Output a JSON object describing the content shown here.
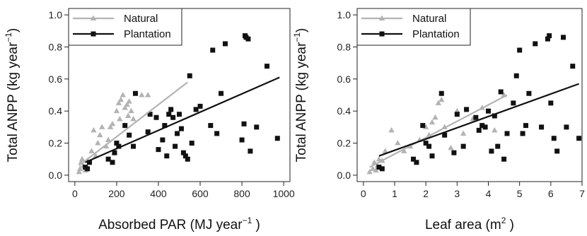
{
  "chart_data": [
    {
      "type": "scatter",
      "xlabel": "Absorbed PAR (MJ  year",
      "xlabel_sup": "−1",
      "xlabel_end": ")",
      "ylabel": "Total ANPP (kg year",
      "ylabel_sup": "−1",
      "ylabel_end": ")",
      "xlim": [
        -30,
        1030
      ],
      "ylim": [
        -0.04,
        1.04
      ],
      "xticks": [
        0,
        200,
        400,
        600,
        800,
        1000
      ],
      "xtick_labels": [
        "0",
        "200",
        "400",
        "600",
        "800",
        "1000"
      ],
      "yticks": [
        0.0,
        0.2,
        0.4,
        0.6,
        0.8,
        1.0
      ],
      "ytick_labels": [
        "0.0",
        "0.2",
        "0.4",
        "0.6",
        "0.8",
        "1.0"
      ],
      "legend_placement": "top-left",
      "series": [
        {
          "name": "Natural",
          "color": "#b3b3b3",
          "marker": "triangle",
          "points": [
            [
              20,
              0.02
            ],
            [
              25,
              0.04
            ],
            [
              30,
              0.08
            ],
            [
              40,
              0.06
            ],
            [
              35,
              0.1
            ],
            [
              50,
              0.03
            ],
            [
              60,
              0.09
            ],
            [
              80,
              0.15
            ],
            [
              90,
              0.28
            ],
            [
              100,
              0.12
            ],
            [
              110,
              0.2
            ],
            [
              120,
              0.25
            ],
            [
              130,
              0.3
            ],
            [
              150,
              0.18
            ],
            [
              160,
              0.22
            ],
            [
              170,
              0.3
            ],
            [
              180,
              0.32
            ],
            [
              190,
              0.14
            ],
            [
              200,
              0.4
            ],
            [
              210,
              0.45
            ],
            [
              215,
              0.35
            ],
            [
              220,
              0.47
            ],
            [
              230,
              0.5
            ],
            [
              240,
              0.42
            ],
            [
              250,
              0.44
            ],
            [
              255,
              0.37
            ],
            [
              260,
              0.46
            ],
            [
              270,
              0.4
            ],
            [
              280,
              0.35
            ],
            [
              320,
              0.5
            ],
            [
              350,
              0.5
            ]
          ],
          "fit": [
            [
              20,
              0.06
            ],
            [
              540,
              0.58
            ]
          ]
        },
        {
          "name": "Plantation",
          "color": "#111111",
          "marker": "square",
          "points": [
            [
              50,
              0.05
            ],
            [
              60,
              0.04
            ],
            [
              70,
              0.08
            ],
            [
              160,
              0.1
            ],
            [
              180,
              0.08
            ],
            [
              190,
              0.14
            ],
            [
              200,
              0.2
            ],
            [
              210,
              0.18
            ],
            [
              240,
              0.31
            ],
            [
              260,
              0.25
            ],
            [
              280,
              0.18
            ],
            [
              290,
              0.51
            ],
            [
              350,
              0.27
            ],
            [
              360,
              0.38
            ],
            [
              390,
              0.36
            ],
            [
              400,
              0.16
            ],
            [
              420,
              0.22
            ],
            [
              430,
              0.31
            ],
            [
              440,
              0.12
            ],
            [
              450,
              0.38
            ],
            [
              460,
              0.41
            ],
            [
              470,
              0.36
            ],
            [
              480,
              0.18
            ],
            [
              490,
              0.26
            ],
            [
              500,
              0.38
            ],
            [
              510,
              0.29
            ],
            [
              520,
              0.14
            ],
            [
              530,
              0.12
            ],
            [
              540,
              0.1
            ],
            [
              550,
              0.62
            ],
            [
              560,
              0.2
            ],
            [
              580,
              0.41
            ],
            [
              600,
              0.43
            ],
            [
              650,
              0.31
            ],
            [
              660,
              0.78
            ],
            [
              680,
              0.26
            ],
            [
              700,
              0.51
            ],
            [
              720,
              0.82
            ],
            [
              800,
              0.22
            ],
            [
              810,
              0.32
            ],
            [
              815,
              0.87
            ],
            [
              820,
              0.86
            ],
            [
              830,
              0.85
            ],
            [
              840,
              0.15
            ],
            [
              870,
              0.3
            ],
            [
              920,
              0.68
            ],
            [
              970,
              0.23
            ]
          ],
          "fit": [
            [
              50,
              0.08
            ],
            [
              980,
              0.61
            ]
          ]
        }
      ]
    },
    {
      "type": "scatter",
      "xlabel": "Leaf area (m",
      "xlabel_sup": "2",
      "xlabel_end": ")",
      "ylabel": "Total ANPP (kg year",
      "ylabel_sup": "−1",
      "ylabel_end": ")",
      "xlim": [
        -0.2,
        7.0
      ],
      "ylim": [
        -0.04,
        1.04
      ],
      "xticks": [
        0,
        1,
        2,
        3,
        4,
        5,
        6,
        7
      ],
      "xtick_labels": [
        "0",
        "1",
        "2",
        "3",
        "4",
        "5",
        "6",
        "7"
      ],
      "yticks": [
        0.0,
        0.2,
        0.4,
        0.6,
        0.8,
        1.0
      ],
      "ytick_labels": [
        "0.0",
        "0.2",
        "0.4",
        "0.6",
        "0.8",
        "1.0"
      ],
      "legend_placement": "top-left",
      "series": [
        {
          "name": "Natural",
          "color": "#b3b3b3",
          "marker": "triangle",
          "points": [
            [
              0.2,
              0.02
            ],
            [
              0.3,
              0.04
            ],
            [
              0.35,
              0.08
            ],
            [
              0.4,
              0.03
            ],
            [
              0.45,
              0.06
            ],
            [
              0.5,
              0.1
            ],
            [
              0.55,
              0.05
            ],
            [
              0.6,
              0.09
            ],
            [
              0.7,
              0.15
            ],
            [
              0.9,
              0.28
            ],
            [
              1.1,
              0.2
            ],
            [
              1.3,
              0.15
            ],
            [
              1.5,
              0.18
            ],
            [
              1.8,
              0.22
            ],
            [
              2.0,
              0.3
            ],
            [
              2.1,
              0.25
            ],
            [
              2.2,
              0.33
            ],
            [
              2.3,
              0.36
            ],
            [
              2.4,
              0.45
            ],
            [
              2.5,
              0.47
            ],
            [
              2.6,
              0.3
            ],
            [
              2.8,
              0.17
            ],
            [
              3.0,
              0.4
            ],
            [
              3.2,
              0.26
            ],
            [
              3.5,
              0.35
            ],
            [
              3.8,
              0.42
            ],
            [
              4.2,
              0.28
            ],
            [
              4.5,
              0.5
            ]
          ],
          "fit": [
            [
              0.2,
              0.05
            ],
            [
              4.6,
              0.5
            ]
          ]
        },
        {
          "name": "Plantation",
          "color": "#111111",
          "marker": "square",
          "points": [
            [
              0.5,
              0.05
            ],
            [
              0.6,
              0.04
            ],
            [
              1.6,
              0.1
            ],
            [
              1.7,
              0.08
            ],
            [
              1.9,
              0.31
            ],
            [
              2.0,
              0.2
            ],
            [
              2.1,
              0.18
            ],
            [
              2.2,
              0.12
            ],
            [
              2.5,
              0.51
            ],
            [
              2.6,
              0.25
            ],
            [
              2.9,
              0.14
            ],
            [
              3.0,
              0.38
            ],
            [
              3.2,
              0.18
            ],
            [
              3.3,
              0.41
            ],
            [
              3.6,
              0.36
            ],
            [
              3.7,
              0.28
            ],
            [
              3.8,
              0.31
            ],
            [
              3.9,
              0.3
            ],
            [
              4.0,
              0.4
            ],
            [
              4.1,
              0.15
            ],
            [
              4.2,
              0.37
            ],
            [
              4.3,
              0.18
            ],
            [
              4.4,
              0.52
            ],
            [
              4.5,
              0.1
            ],
            [
              4.6,
              0.26
            ],
            [
              4.8,
              0.45
            ],
            [
              4.9,
              0.62
            ],
            [
              5.0,
              0.78
            ],
            [
              5.1,
              0.26
            ],
            [
              5.2,
              0.31
            ],
            [
              5.3,
              0.51
            ],
            [
              5.5,
              0.82
            ],
            [
              5.7,
              0.3
            ],
            [
              5.9,
              0.85
            ],
            [
              5.95,
              0.87
            ],
            [
              6.0,
              0.45
            ],
            [
              6.1,
              0.23
            ],
            [
              6.2,
              0.15
            ],
            [
              6.4,
              0.86
            ],
            [
              6.5,
              0.3
            ],
            [
              6.7,
              0.68
            ],
            [
              6.9,
              0.23
            ]
          ],
          "fit": [
            [
              0.5,
              0.12
            ],
            [
              6.9,
              0.57
            ]
          ]
        }
      ]
    }
  ]
}
